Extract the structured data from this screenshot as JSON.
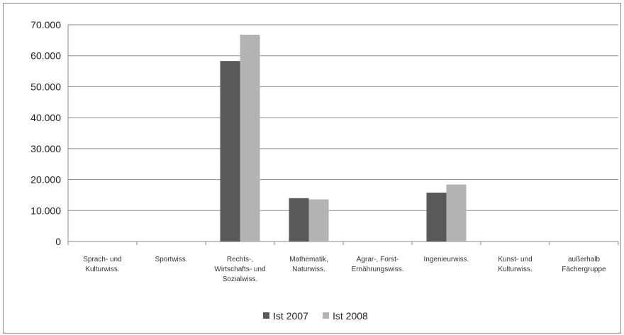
{
  "chart_data": {
    "type": "bar",
    "categories": [
      [
        "Sprach- und",
        "Kulturwiss."
      ],
      [
        "Sportwiss."
      ],
      [
        "Rechts-,",
        "Wirtschafts- und",
        "Sozialwiss."
      ],
      [
        "Mathematik,",
        "Naturwiss."
      ],
      [
        "Agrar-, Forst-",
        "Ernährungswiss."
      ],
      [
        "Ingenieurwiss."
      ],
      [
        "Kunst- und",
        "Kulturwiss."
      ],
      [
        "außerhalb",
        "Fächergruppe"
      ]
    ],
    "series": [
      {
        "name": "Ist 2007",
        "color": "#595959",
        "values": [
          0,
          0,
          58300,
          14000,
          0,
          15800,
          0,
          0
        ]
      },
      {
        "name": "Ist 2008",
        "color": "#b3b3b3",
        "values": [
          0,
          0,
          66800,
          13600,
          0,
          18400,
          0,
          0
        ]
      }
    ],
    "ylim": [
      0,
      70000
    ],
    "yticks": [
      0,
      10000,
      20000,
      30000,
      40000,
      50000,
      60000,
      70000
    ],
    "ytick_labels": [
      "0",
      "10.000",
      "20.000",
      "30.000",
      "40.000",
      "50.000",
      "60.000",
      "70.000"
    ],
    "grid": true,
    "legend_position": "bottom",
    "legend": [
      "Ist 2007",
      "Ist 2008"
    ]
  }
}
